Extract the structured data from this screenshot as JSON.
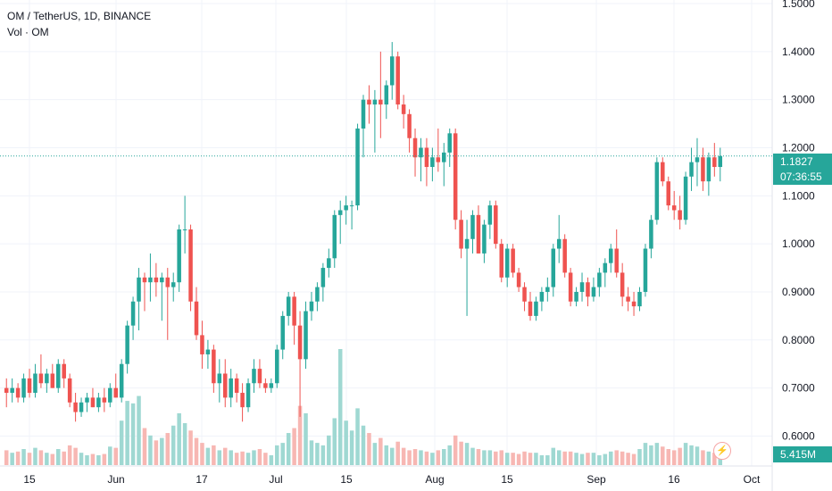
{
  "legend": {
    "title": "OM / TetherUS, 1D, BINANCE",
    "volume_label": "Vol · OM"
  },
  "price_tag": {
    "price": "1.1827",
    "countdown": "07:36:55"
  },
  "volume_tag": "5.415M",
  "colors": {
    "up": "#26a69a",
    "down": "#ef5350",
    "up_vol": "#9fd8d2",
    "down_vol": "#f7b7b3"
  },
  "icons": {
    "bolt": "lightning-bolt-icon"
  },
  "chart_data": {
    "type": "candlestick",
    "symbol": "OM / TetherUS",
    "interval": "1D",
    "exchange": "BINANCE",
    "ylim": [
      0.56,
      1.5
    ],
    "y_ticks": [
      "1.5000",
      "1.4000",
      "1.3000",
      "1.2000",
      "1.1000",
      "1.0000",
      "0.9000",
      "0.8000",
      "0.7000",
      "0.6000"
    ],
    "x_ticks": [
      "15",
      "Jun",
      "17",
      "Jul",
      "15",
      "Aug",
      "15",
      "Sep",
      "16",
      "Oct"
    ],
    "last_price": 1.1827,
    "candles": [
      [
        0.7,
        0.72,
        0.66,
        0.69,
        1.2
      ],
      [
        0.69,
        0.72,
        0.67,
        0.7,
        1.0
      ],
      [
        0.7,
        0.71,
        0.67,
        0.68,
        1.1
      ],
      [
        0.68,
        0.73,
        0.67,
        0.72,
        1.3
      ],
      [
        0.72,
        0.74,
        0.68,
        0.69,
        1.0
      ],
      [
        0.69,
        0.75,
        0.68,
        0.73,
        1.4
      ],
      [
        0.73,
        0.77,
        0.7,
        0.71,
        1.2
      ],
      [
        0.71,
        0.74,
        0.69,
        0.73,
        1.0
      ],
      [
        0.73,
        0.75,
        0.7,
        0.7,
        0.9
      ],
      [
        0.7,
        0.76,
        0.69,
        0.75,
        1.3
      ],
      [
        0.75,
        0.76,
        0.7,
        0.72,
        1.1
      ],
      [
        0.72,
        0.73,
        0.66,
        0.67,
        1.6
      ],
      [
        0.67,
        0.69,
        0.63,
        0.65,
        1.4
      ],
      [
        0.65,
        0.68,
        0.64,
        0.67,
        1.0
      ],
      [
        0.67,
        0.69,
        0.65,
        0.68,
        0.8
      ],
      [
        0.68,
        0.7,
        0.66,
        0.66,
        0.9
      ],
      [
        0.66,
        0.69,
        0.65,
        0.68,
        0.8
      ],
      [
        0.68,
        0.7,
        0.65,
        0.67,
        0.9
      ],
      [
        0.67,
        0.71,
        0.66,
        0.7,
        1.5
      ],
      [
        0.7,
        0.73,
        0.68,
        0.68,
        1.4
      ],
      [
        0.68,
        0.76,
        0.67,
        0.75,
        3.6
      ],
      [
        0.75,
        0.84,
        0.73,
        0.83,
        5.2
      ],
      [
        0.83,
        0.89,
        0.8,
        0.88,
        5.0
      ],
      [
        0.88,
        0.95,
        0.82,
        0.93,
        5.6
      ],
      [
        0.93,
        0.94,
        0.86,
        0.92,
        3.0
      ],
      [
        0.92,
        0.98,
        0.88,
        0.93,
        2.4
      ],
      [
        0.93,
        0.96,
        0.89,
        0.92,
        2.0
      ],
      [
        0.92,
        0.94,
        0.84,
        0.93,
        2.2
      ],
      [
        0.93,
        0.95,
        0.8,
        0.91,
        2.6
      ],
      [
        0.91,
        0.94,
        0.88,
        0.92,
        3.2
      ],
      [
        0.92,
        1.04,
        0.9,
        1.03,
        4.2
      ],
      [
        1.03,
        1.1,
        0.98,
        1.03,
        3.4
      ],
      [
        1.03,
        1.04,
        0.86,
        0.88,
        2.8
      ],
      [
        0.88,
        0.91,
        0.8,
        0.81,
        2.2
      ],
      [
        0.81,
        0.84,
        0.74,
        0.77,
        1.8
      ],
      [
        0.77,
        0.8,
        0.74,
        0.78,
        1.4
      ],
      [
        0.78,
        0.79,
        0.69,
        0.71,
        1.6
      ],
      [
        0.71,
        0.76,
        0.67,
        0.73,
        1.2
      ],
      [
        0.73,
        0.76,
        0.66,
        0.68,
        1.4
      ],
      [
        0.68,
        0.74,
        0.66,
        0.72,
        1.2
      ],
      [
        0.72,
        0.73,
        0.67,
        0.69,
        1.0
      ],
      [
        0.69,
        0.71,
        0.63,
        0.66,
        1.1
      ],
      [
        0.66,
        0.72,
        0.65,
        0.71,
        1.0
      ],
      [
        0.71,
        0.76,
        0.69,
        0.74,
        1.2
      ],
      [
        0.74,
        0.76,
        0.7,
        0.71,
        1.3
      ],
      [
        0.71,
        0.72,
        0.69,
        0.7,
        1.0
      ],
      [
        0.7,
        0.72,
        0.69,
        0.71,
        0.8
      ],
      [
        0.71,
        0.79,
        0.7,
        0.78,
        1.6
      ],
      [
        0.78,
        0.86,
        0.76,
        0.85,
        1.8
      ],
      [
        0.85,
        0.9,
        0.83,
        0.89,
        2.6
      ],
      [
        0.89,
        0.9,
        0.79,
        0.83,
        3.0
      ],
      [
        0.83,
        0.86,
        0.64,
        0.76,
        4.8
      ],
      [
        0.76,
        0.88,
        0.74,
        0.86,
        4.2
      ],
      [
        0.86,
        0.9,
        0.84,
        0.88,
        2.0
      ],
      [
        0.88,
        0.92,
        0.86,
        0.91,
        1.8
      ],
      [
        0.91,
        0.96,
        0.88,
        0.95,
        1.6
      ],
      [
        0.95,
        0.99,
        0.93,
        0.97,
        2.4
      ],
      [
        0.97,
        1.07,
        0.95,
        1.06,
        3.8
      ],
      [
        1.06,
        1.09,
        1.0,
        1.07,
        9.4
      ],
      [
        1.07,
        1.1,
        1.04,
        1.08,
        3.6
      ],
      [
        1.08,
        1.09,
        1.03,
        1.08,
        2.8
      ],
      [
        1.08,
        1.25,
        1.07,
        1.24,
        4.6
      ],
      [
        1.24,
        1.31,
        1.18,
        1.3,
        3.2
      ],
      [
        1.3,
        1.33,
        1.25,
        1.29,
        2.6
      ],
      [
        1.29,
        1.32,
        1.19,
        1.3,
        1.8
      ],
      [
        1.3,
        1.4,
        1.22,
        1.29,
        2.2
      ],
      [
        1.29,
        1.34,
        1.26,
        1.33,
        1.6
      ],
      [
        1.33,
        1.42,
        1.3,
        1.39,
        1.4
      ],
      [
        1.39,
        1.4,
        1.28,
        1.29,
        1.9
      ],
      [
        1.29,
        1.31,
        1.24,
        1.27,
        1.4
      ],
      [
        1.27,
        1.28,
        1.19,
        1.22,
        1.2
      ],
      [
        1.22,
        1.24,
        1.14,
        1.18,
        1.3
      ],
      [
        1.18,
        1.22,
        1.13,
        1.2,
        1.2
      ],
      [
        1.2,
        1.22,
        1.12,
        1.16,
        1.1
      ],
      [
        1.16,
        1.2,
        1.13,
        1.18,
        1.0
      ],
      [
        1.18,
        1.24,
        1.15,
        1.17,
        1.2
      ],
      [
        1.17,
        1.21,
        1.12,
        1.19,
        1.3
      ],
      [
        1.19,
        1.24,
        1.16,
        1.23,
        1.6
      ],
      [
        1.23,
        1.24,
        1.03,
        1.05,
        2.4
      ],
      [
        1.05,
        1.07,
        0.97,
        0.99,
        1.9
      ],
      [
        0.99,
        1.05,
        0.85,
        1.01,
        1.8
      ],
      [
        1.01,
        1.07,
        0.98,
        1.06,
        1.4
      ],
      [
        1.06,
        1.08,
        0.98,
        0.98,
        1.3
      ],
      [
        0.98,
        1.05,
        0.96,
        1.04,
        1.2
      ],
      [
        1.04,
        1.09,
        1.01,
        1.08,
        1.2
      ],
      [
        1.08,
        1.09,
        0.99,
        1.0,
        1.1
      ],
      [
        1.0,
        1.01,
        0.92,
        0.93,
        1.2
      ],
      [
        0.93,
        1.0,
        0.91,
        0.99,
        1.0
      ],
      [
        0.99,
        1.0,
        0.93,
        0.94,
        1.0
      ],
      [
        0.94,
        0.95,
        0.9,
        0.91,
        0.9
      ],
      [
        0.91,
        0.92,
        0.86,
        0.88,
        1.1
      ],
      [
        0.88,
        0.9,
        0.84,
        0.85,
        1.0
      ],
      [
        0.85,
        0.89,
        0.84,
        0.88,
        1.0
      ],
      [
        0.88,
        0.91,
        0.86,
        0.9,
        0.8
      ],
      [
        0.9,
        0.93,
        0.88,
        0.91,
        0.8
      ],
      [
        0.91,
        1.0,
        0.89,
        0.99,
        1.4
      ],
      [
        0.99,
        1.06,
        0.96,
        1.01,
        1.2
      ],
      [
        1.01,
        1.02,
        0.93,
        0.94,
        1.1
      ],
      [
        0.94,
        0.95,
        0.87,
        0.88,
        1.1
      ],
      [
        0.88,
        0.91,
        0.87,
        0.9,
        1.0
      ],
      [
        0.9,
        0.94,
        0.88,
        0.92,
        0.9
      ],
      [
        0.92,
        0.93,
        0.87,
        0.89,
        1.0
      ],
      [
        0.89,
        0.93,
        0.88,
        0.91,
        1.0
      ],
      [
        0.91,
        0.95,
        0.89,
        0.94,
        0.8
      ],
      [
        0.94,
        0.97,
        0.91,
        0.96,
        0.9
      ],
      [
        0.96,
        1.0,
        0.94,
        0.99,
        1.1
      ],
      [
        0.99,
        1.03,
        0.93,
        0.94,
        1.2
      ],
      [
        0.94,
        0.96,
        0.87,
        0.89,
        1.1
      ],
      [
        0.89,
        0.91,
        0.86,
        0.88,
        1.0
      ],
      [
        0.88,
        0.9,
        0.85,
        0.87,
        0.9
      ],
      [
        0.87,
        0.91,
        0.86,
        0.9,
        1.3
      ],
      [
        0.9,
        1.0,
        0.89,
        0.99,
        1.8
      ],
      [
        0.99,
        1.06,
        0.97,
        1.05,
        1.6
      ],
      [
        1.05,
        1.18,
        1.04,
        1.17,
        1.8
      ],
      [
        1.17,
        1.18,
        1.12,
        1.13,
        1.5
      ],
      [
        1.13,
        1.14,
        1.07,
        1.08,
        1.3
      ],
      [
        1.08,
        1.11,
        1.05,
        1.07,
        1.2
      ],
      [
        1.07,
        1.1,
        1.03,
        1.05,
        1.4
      ],
      [
        1.05,
        1.15,
        1.04,
        1.14,
        1.8
      ],
      [
        1.14,
        1.2,
        1.11,
        1.17,
        1.6
      ],
      [
        1.17,
        1.22,
        1.12,
        1.18,
        1.5
      ],
      [
        1.18,
        1.2,
        1.11,
        1.13,
        1.2
      ],
      [
        1.13,
        1.19,
        1.1,
        1.18,
        1.1
      ],
      [
        1.18,
        1.21,
        1.14,
        1.16,
        1.0
      ],
      [
        1.16,
        1.2,
        1.13,
        1.1827,
        0.9
      ]
    ]
  }
}
